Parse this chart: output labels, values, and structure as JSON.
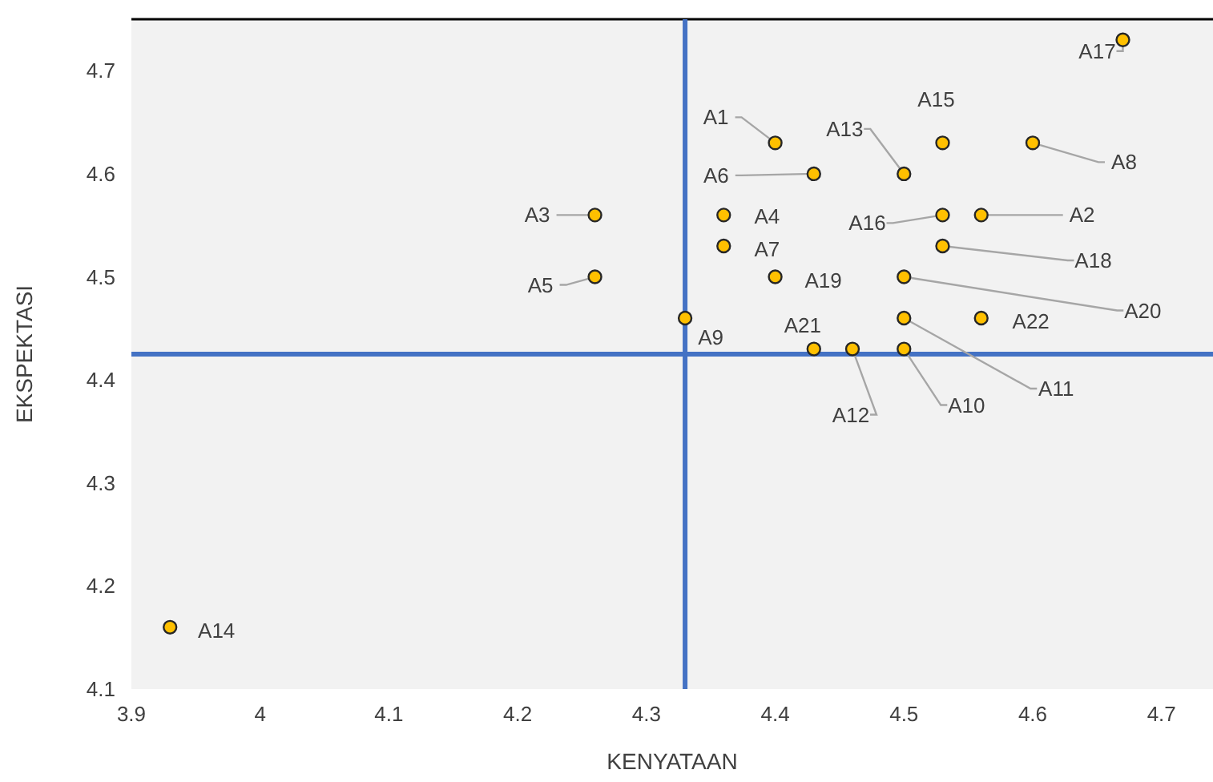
{
  "chart_data": {
    "type": "scatter",
    "xlabel": "KENYATAAN",
    "ylabel": "EKSPEKTASI",
    "x": [
      4.4,
      4.56,
      4.26,
      4.36,
      4.26,
      4.43,
      4.36,
      4.6,
      4.33,
      4.5,
      4.5,
      4.46,
      4.5,
      3.93,
      4.53,
      4.53,
      4.67,
      4.53,
      4.4,
      4.5,
      4.43,
      4.56
    ],
    "values": [
      4.63,
      4.56,
      4.56,
      4.56,
      4.5,
      4.6,
      4.53,
      4.63,
      4.46,
      4.43,
      4.46,
      4.43,
      4.6,
      4.16,
      4.63,
      4.56,
      4.73,
      4.53,
      4.5,
      4.5,
      4.43,
      4.46
    ],
    "value_labels": [
      "A1",
      "A2",
      "A3",
      "A4",
      "A5",
      "A6",
      "A7",
      "A8",
      "A9",
      "A10",
      "A11",
      "A12",
      "A13",
      "A14",
      "A15",
      "A16",
      "A17",
      "A18",
      "A19",
      "A20",
      "A21",
      "A22"
    ],
    "color": "#ffc000",
    "marker": "circle",
    "xlim": [
      3.9,
      4.74
    ],
    "ylim": [
      4.1,
      4.75
    ],
    "xticks": [
      3.9,
      4,
      4.1,
      4.2,
      4.3,
      4.4,
      4.5,
      4.6,
      4.7
    ],
    "yticks": [
      4.1,
      4.2,
      4.3,
      4.4,
      4.5,
      4.6,
      4.7
    ],
    "ref_lines": [
      {
        "axis": "x",
        "value": 4.33,
        "color": "#4472c4"
      },
      {
        "axis": "y",
        "value": 4.425,
        "color": "#4472c4"
      }
    ]
  }
}
